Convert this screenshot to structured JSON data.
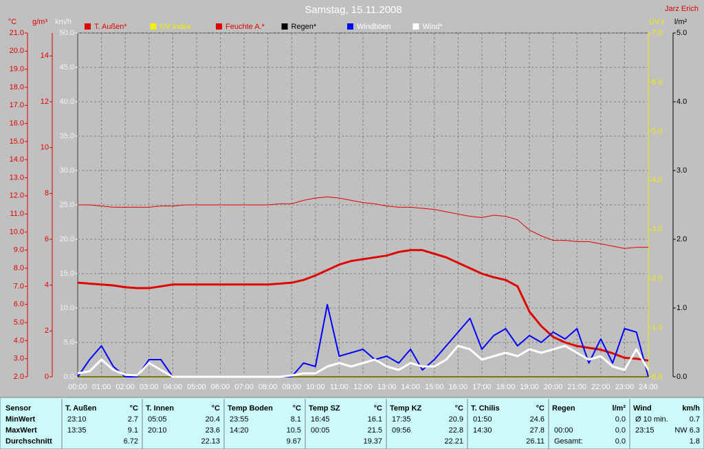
{
  "chart_data": {
    "type": "line",
    "title": "Samstag, 15.11.2008",
    "author": "Jarz Erich",
    "x": [
      0,
      0.5,
      1,
      1.5,
      2,
      2.5,
      3,
      3.5,
      4,
      4.5,
      5,
      5.5,
      6,
      6.5,
      7,
      7.5,
      8,
      8.5,
      9,
      9.5,
      10,
      10.5,
      11,
      11.5,
      12,
      12.5,
      13,
      13.5,
      14,
      14.5,
      15,
      15.5,
      16,
      16.5,
      17,
      17.5,
      18,
      18.5,
      19,
      19.5,
      20,
      20.5,
      21,
      21.5,
      22,
      22.5,
      23,
      23.5,
      24
    ],
    "xlim": [
      0,
      24
    ],
    "xticks": [
      {
        "value": 0,
        "label": "00:00"
      },
      {
        "value": 1,
        "label": "01:00"
      },
      {
        "value": 2,
        "label": "02:00"
      },
      {
        "value": 3,
        "label": "03:00"
      },
      {
        "value": 4,
        "label": "04:00"
      },
      {
        "value": 5,
        "label": "05:00"
      },
      {
        "value": 6,
        "label": "06:00"
      },
      {
        "value": 7,
        "label": "07:00"
      },
      {
        "value": 8,
        "label": "08:00"
      },
      {
        "value": 9,
        "label": "09:00"
      },
      {
        "value": 10,
        "label": "10:00"
      },
      {
        "value": 11,
        "label": "11:00"
      },
      {
        "value": 12,
        "label": "12:00"
      },
      {
        "value": 13,
        "label": "13:00"
      },
      {
        "value": 14,
        "label": "14:00"
      },
      {
        "value": 15,
        "label": "15:00"
      },
      {
        "value": 16,
        "label": "16:00"
      },
      {
        "value": 17,
        "label": "17:00"
      },
      {
        "value": 18,
        "label": "18:00"
      },
      {
        "value": 19,
        "label": "19:00"
      },
      {
        "value": 20,
        "label": "20:00"
      },
      {
        "value": 21,
        "label": "21:00"
      },
      {
        "value": 22,
        "label": "22:00"
      },
      {
        "value": 23,
        "label": "23:00"
      },
      {
        "value": 24,
        "label": "24:00"
      }
    ],
    "grid": true,
    "axes": [
      {
        "label": "°C",
        "color": "#e00000",
        "lim": [
          2,
          21
        ],
        "ticks": [
          {
            "value": 2,
            "label": "2.0"
          },
          {
            "value": 3,
            "label": "3.0"
          },
          {
            "value": 4,
            "label": "4.0"
          },
          {
            "value": 5,
            "label": "5.0"
          },
          {
            "value": 6,
            "label": "6.0"
          },
          {
            "value": 7,
            "label": "7.0"
          },
          {
            "value": 8,
            "label": "8.0"
          },
          {
            "value": 9,
            "label": "9.0"
          },
          {
            "value": 10,
            "label": "10.0"
          },
          {
            "value": 11,
            "label": "11.0"
          },
          {
            "value": 12,
            "label": "12.0"
          },
          {
            "value": 13,
            "label": "13.0"
          },
          {
            "value": 14,
            "label": "14.0"
          },
          {
            "value": 15,
            "label": "15.0"
          },
          {
            "value": 16,
            "label": "16.0"
          },
          {
            "value": 17,
            "label": "17.0"
          },
          {
            "value": 18,
            "label": "18.0"
          },
          {
            "value": 19,
            "label": "19.0"
          },
          {
            "value": 20,
            "label": "20.0"
          },
          {
            "value": 21,
            "label": "21.0"
          }
        ]
      },
      {
        "label": "g/m³",
        "color": "#e00000",
        "lim": [
          0,
          15
        ],
        "ticks": [
          0,
          2,
          4,
          6,
          8,
          10,
          12,
          14
        ]
      },
      {
        "label": "km/h",
        "color": "#f4f4f4",
        "lim": [
          0,
          50
        ],
        "grid": true,
        "ticks": [
          {
            "value": 0,
            "label": "0.0"
          },
          {
            "value": 5,
            "label": "5.0"
          },
          {
            "value": 10,
            "label": "10.0"
          },
          {
            "value": 15,
            "label": "15.0"
          },
          {
            "value": 20,
            "label": "20.0"
          },
          {
            "value": 25,
            "label": "25.0"
          },
          {
            "value": 30,
            "label": "30.0"
          },
          {
            "value": 35,
            "label": "35.0"
          },
          {
            "value": 40,
            "label": "40.0"
          },
          {
            "value": 45,
            "label": "45.0"
          },
          {
            "value": 50,
            "label": "50.0"
          }
        ]
      },
      {
        "label": "UV-I",
        "color": "#f0f000",
        "lim": [
          0,
          7
        ],
        "ticks": [
          {
            "value": 0,
            "label": "0.0"
          },
          {
            "value": 1,
            "label": "1.0"
          },
          {
            "value": 2,
            "label": "2.0"
          },
          {
            "value": 3,
            "label": "3.0"
          },
          {
            "value": 4,
            "label": "4.0"
          },
          {
            "value": 5,
            "label": "5.0"
          },
          {
            "value": 6,
            "label": "6.0"
          },
          {
            "value": 7,
            "label": "7.0"
          }
        ]
      },
      {
        "label": "l/m²",
        "color": "#000000",
        "lim": [
          0,
          5
        ],
        "ticks": [
          {
            "value": 0,
            "label": "0.0"
          },
          {
            "value": 1,
            "label": "1.0"
          },
          {
            "value": 2,
            "label": "2.0"
          },
          {
            "value": 3,
            "label": "3.0"
          },
          {
            "value": 4,
            "label": "4.0"
          },
          {
            "value": 5,
            "label": "5.0"
          }
        ]
      }
    ],
    "series": [
      {
        "name": "T. Außen*",
        "color": "#e00000",
        "width": 3,
        "axis": 0,
        "values": [
          7.2,
          7.15,
          7.1,
          7.05,
          6.95,
          6.9,
          6.9,
          7.0,
          7.1,
          7.1,
          7.1,
          7.1,
          7.1,
          7.1,
          7.1,
          7.1,
          7.1,
          7.15,
          7.2,
          7.35,
          7.6,
          7.9,
          8.2,
          8.4,
          8.5,
          8.6,
          8.7,
          8.9,
          9.0,
          9.0,
          8.8,
          8.6,
          8.3,
          8.0,
          7.7,
          7.5,
          7.35,
          7.0,
          5.6,
          4.8,
          4.2,
          3.9,
          3.7,
          3.6,
          3.5,
          3.3,
          3.05,
          3.0,
          2.9
        ]
      },
      {
        "name": "UV Index",
        "color": "#f0f000",
        "width": 2,
        "axis": 3,
        "values": [
          0,
          0,
          0,
          0,
          0,
          0,
          0,
          0,
          0,
          0,
          0,
          0,
          0,
          0,
          0,
          0,
          0,
          0,
          0,
          0,
          0,
          0,
          0,
          0,
          0,
          0,
          0,
          0,
          0,
          0,
          0,
          0,
          0,
          0,
          0,
          0,
          0,
          0,
          0,
          0,
          0,
          0,
          0,
          0,
          0,
          0,
          0,
          0,
          0
        ]
      },
      {
        "name": "Feuchte A.*",
        "color": "#e00000",
        "width": 1,
        "axis": 1,
        "values": [
          7.5,
          7.5,
          7.45,
          7.4,
          7.4,
          7.4,
          7.4,
          7.45,
          7.45,
          7.5,
          7.5,
          7.5,
          7.5,
          7.5,
          7.5,
          7.5,
          7.5,
          7.55,
          7.55,
          7.7,
          7.8,
          7.85,
          7.8,
          7.7,
          7.6,
          7.55,
          7.45,
          7.4,
          7.4,
          7.35,
          7.3,
          7.2,
          7.1,
          7.0,
          6.95,
          7.05,
          7.0,
          6.85,
          6.4,
          6.15,
          5.95,
          5.95,
          5.9,
          5.9,
          5.8,
          5.7,
          5.6,
          5.65,
          5.65
        ]
      },
      {
        "name": "Regen*",
        "color": "#000000",
        "width": 1,
        "axis": 4,
        "values": [
          0,
          0,
          0,
          0,
          0,
          0,
          0,
          0,
          0,
          0,
          0,
          0,
          0,
          0,
          0,
          0,
          0,
          0,
          0,
          0,
          0,
          0,
          0,
          0,
          0,
          0,
          0,
          0,
          0,
          0,
          0,
          0,
          0,
          0,
          0,
          0,
          0,
          0,
          0,
          0,
          0,
          0,
          0,
          0,
          0,
          0,
          0,
          0,
          0
        ]
      },
      {
        "name": "Windböen",
        "color": "#0000ff",
        "width": 2,
        "axis": 2,
        "values": [
          0,
          2.5,
          4.5,
          1.5,
          0,
          0,
          2.5,
          2.5,
          0,
          0,
          0,
          0,
          0,
          0,
          0,
          0,
          0,
          0,
          0,
          2.0,
          1.5,
          10.5,
          3.0,
          3.5,
          4.0,
          2.5,
          3.0,
          2.0,
          4.0,
          1.0,
          2.5,
          4.5,
          6.5,
          8.5,
          4.0,
          6.0,
          7.0,
          4.5,
          6.0,
          5.0,
          6.5,
          5.5,
          7.0,
          2.0,
          5.5,
          2.0,
          7.0,
          6.5,
          0
        ]
      },
      {
        "name": "Wind*",
        "color": "#ffffff",
        "width": 3,
        "axis": 2,
        "values": [
          0.5,
          0.8,
          2.5,
          1.0,
          0.3,
          0.2,
          2.0,
          1.0,
          0,
          0,
          0,
          0,
          0,
          0,
          0,
          0,
          0,
          0,
          0.2,
          0.5,
          0.5,
          1.5,
          2.0,
          1.5,
          2.0,
          2.5,
          1.5,
          1.0,
          2.0,
          1.5,
          1.5,
          2.5,
          4.5,
          4.0,
          2.5,
          3.0,
          3.5,
          3.0,
          4.0,
          3.5,
          4.0,
          4.5,
          3.5,
          2.5,
          3.0,
          1.5,
          1.0,
          4.0,
          1.0
        ]
      }
    ]
  },
  "stats_table": {
    "row_labels": [
      "Sensor",
      "MinWert",
      "MaxWert",
      "Durchschnitt"
    ],
    "groups": [
      {
        "name": "T. Außen",
        "unit": "°C",
        "rows": [
          {
            "time": "23:10",
            "value": "2.7"
          },
          {
            "time": "13:35",
            "value": "9.1"
          },
          {
            "value": "6.72"
          }
        ]
      },
      {
        "name": "T. Innen",
        "unit": "°C",
        "rows": [
          {
            "time": "05:05",
            "value": "20.4"
          },
          {
            "time": "20:10",
            "value": "23.6"
          },
          {
            "value": "22.13"
          }
        ]
      },
      {
        "name": "Temp Boden",
        "unit": "°C",
        "rows": [
          {
            "time": "23:55",
            "value": "8.1"
          },
          {
            "time": "14:20",
            "value": "10.5"
          },
          {
            "value": "9.67"
          }
        ]
      },
      {
        "name": "Temp SZ",
        "unit": "°C",
        "rows": [
          {
            "time": "16:45",
            "value": "16.1"
          },
          {
            "time": "00:05",
            "value": "21.5"
          },
          {
            "value": "19.37"
          }
        ]
      },
      {
        "name": "Temp KZ",
        "unit": "°C",
        "rows": [
          {
            "time": "17:35",
            "value": "20.9"
          },
          {
            "time": "09:56",
            "value": "22.8"
          },
          {
            "value": "22.21"
          }
        ]
      },
      {
        "name": "T. Chilis",
        "unit": "°C",
        "rows": [
          {
            "time": "01:50",
            "value": "24.6"
          },
          {
            "time": "14:30",
            "value": "27.8"
          },
          {
            "value": "26.11"
          }
        ]
      },
      {
        "name": "Regen",
        "unit": "l/m²",
        "rows": [
          {
            "value": "0.0"
          },
          {
            "time": "00:00",
            "value": "0.0"
          },
          {
            "time": "Gesamt:",
            "value": "0.0"
          }
        ]
      },
      {
        "name": "Wind",
        "unit": "km/h",
        "rows": [
          {
            "time": "Ø 10 min.",
            "value": "0.7"
          },
          {
            "time": "23:15",
            "value": "NW 6.3"
          },
          {
            "value": "1.8"
          }
        ]
      }
    ]
  }
}
